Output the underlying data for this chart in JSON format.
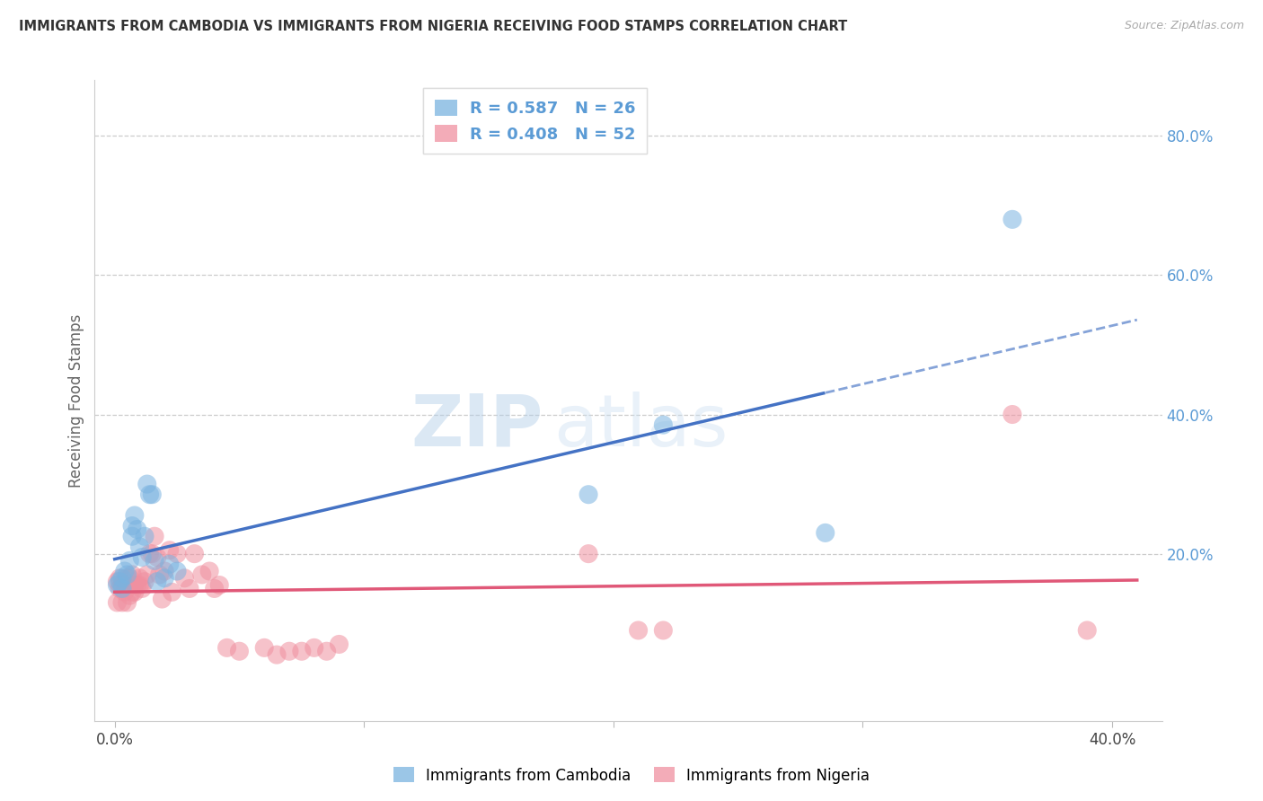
{
  "title": "IMMIGRANTS FROM CAMBODIA VS IMMIGRANTS FROM NIGERIA RECEIVING FOOD STAMPS CORRELATION CHART",
  "source": "Source: ZipAtlas.com",
  "ylabel": "Receiving Food Stamps",
  "right_axis_color": "#5b9bd5",
  "cambodia_color": "#7ab3e0",
  "nigeria_color": "#f090a0",
  "regression_blue": "#4472c4",
  "regression_pink": "#e05878",
  "watermark_zip": "ZIP",
  "watermark_atlas": "atlas",
  "background_color": "#ffffff",
  "grid_color": "#cccccc",
  "xlim": [
    -0.008,
    0.42
  ],
  "ylim": [
    -0.04,
    0.88
  ],
  "legend_R_cambodia": "R = 0.587",
  "legend_N_cambodia": "N = 26",
  "legend_R_nigeria": "R = 0.408",
  "legend_N_nigeria": "N = 52",
  "cambodia_x": [
    0.001,
    0.002,
    0.003,
    0.003,
    0.004,
    0.005,
    0.006,
    0.007,
    0.007,
    0.008,
    0.009,
    0.01,
    0.011,
    0.012,
    0.013,
    0.014,
    0.015,
    0.016,
    0.017,
    0.02,
    0.022,
    0.025,
    0.19,
    0.22,
    0.285,
    0.36
  ],
  "cambodia_y": [
    0.155,
    0.16,
    0.15,
    0.165,
    0.175,
    0.17,
    0.19,
    0.225,
    0.24,
    0.255,
    0.235,
    0.21,
    0.195,
    0.225,
    0.3,
    0.285,
    0.285,
    0.19,
    0.16,
    0.165,
    0.185,
    0.175,
    0.285,
    0.385,
    0.23,
    0.68
  ],
  "nigeria_x": [
    0.001,
    0.001,
    0.002,
    0.002,
    0.003,
    0.003,
    0.004,
    0.005,
    0.005,
    0.006,
    0.006,
    0.007,
    0.007,
    0.008,
    0.008,
    0.009,
    0.01,
    0.01,
    0.011,
    0.012,
    0.013,
    0.014,
    0.015,
    0.016,
    0.017,
    0.018,
    0.019,
    0.02,
    0.022,
    0.023,
    0.025,
    0.028,
    0.03,
    0.032,
    0.035,
    0.038,
    0.04,
    0.042,
    0.045,
    0.05,
    0.06,
    0.065,
    0.07,
    0.075,
    0.08,
    0.085,
    0.09,
    0.19,
    0.21,
    0.22,
    0.36,
    0.39
  ],
  "nigeria_y": [
    0.13,
    0.16,
    0.15,
    0.165,
    0.13,
    0.155,
    0.145,
    0.13,
    0.165,
    0.14,
    0.165,
    0.145,
    0.17,
    0.145,
    0.155,
    0.155,
    0.155,
    0.165,
    0.15,
    0.16,
    0.17,
    0.2,
    0.2,
    0.225,
    0.195,
    0.17,
    0.135,
    0.175,
    0.205,
    0.145,
    0.2,
    0.165,
    0.15,
    0.2,
    0.17,
    0.175,
    0.15,
    0.155,
    0.065,
    0.06,
    0.065,
    0.055,
    0.06,
    0.06,
    0.065,
    0.06,
    0.07,
    0.2,
    0.09,
    0.09,
    0.4,
    0.09
  ]
}
